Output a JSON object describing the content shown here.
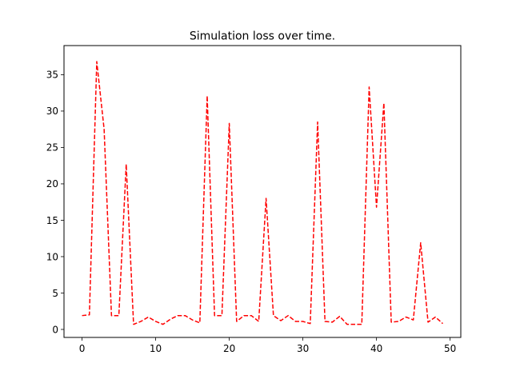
{
  "chart_data": {
    "type": "line",
    "title": "Simulation loss over time.",
    "xlabel": "",
    "ylabel": "",
    "xlim": [
      -2.45,
      51.45
    ],
    "ylim": [
      -1.1,
      39.0
    ],
    "x_ticks": [
      0,
      10,
      20,
      30,
      40,
      50
    ],
    "y_ticks": [
      0,
      5,
      10,
      15,
      20,
      25,
      30,
      35
    ],
    "grid": false,
    "legend": "none",
    "series": [
      {
        "color": "#ff0000",
        "line_style": "dashed",
        "x": [
          0,
          1,
          2,
          3,
          4,
          5,
          6,
          7,
          8,
          9,
          10,
          11,
          12,
          13,
          14,
          15,
          16,
          17,
          18,
          19,
          20,
          21,
          22,
          23,
          24,
          25,
          26,
          27,
          28,
          29,
          30,
          31,
          32,
          33,
          34,
          35,
          36,
          37,
          38,
          39,
          40,
          41,
          42,
          43,
          44,
          45,
          46,
          47,
          48,
          49
        ],
        "values": [
          1.9,
          2.0,
          36.8,
          27.5,
          1.9,
          1.9,
          22.7,
          0.7,
          1.1,
          1.7,
          1.1,
          0.7,
          1.4,
          1.9,
          1.9,
          1.3,
          0.9,
          32.1,
          1.9,
          1.9,
          28.3,
          1.1,
          1.9,
          1.9,
          1.1,
          18.0,
          1.9,
          1.2,
          1.9,
          1.1,
          1.1,
          0.8,
          28.5,
          1.1,
          1.0,
          1.8,
          0.7,
          0.7,
          0.7,
          33.3,
          16.8,
          31.1,
          1.0,
          1.1,
          1.7,
          1.3,
          11.9,
          1.0,
          1.7,
          0.8
        ]
      }
    ]
  }
}
